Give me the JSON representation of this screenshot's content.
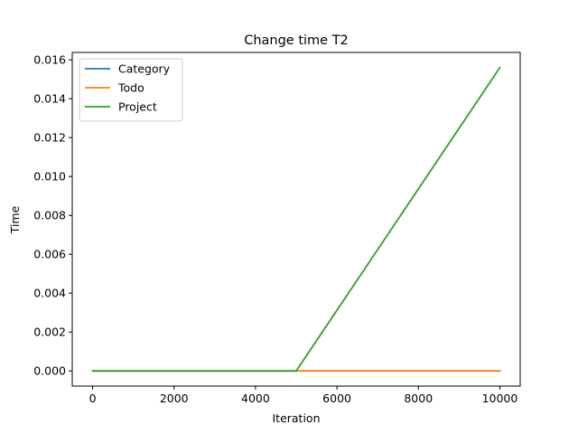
{
  "chart_data": {
    "type": "line",
    "title": "Change time T2",
    "xlabel": "Iteration",
    "ylabel": "Time",
    "xlim": [
      -500,
      10500
    ],
    "ylim": [
      -0.00078,
      0.01638
    ],
    "xticks": [
      0,
      2000,
      4000,
      6000,
      8000,
      10000
    ],
    "yticks": [
      0.0,
      0.002,
      0.004,
      0.006,
      0.008,
      0.01,
      0.012,
      0.014,
      0.016
    ],
    "xtick_labels": [
      "0",
      "2000",
      "4000",
      "6000",
      "8000",
      "10000"
    ],
    "ytick_labels": [
      "0.000",
      "0.002",
      "0.004",
      "0.006",
      "0.008",
      "0.010",
      "0.012",
      "0.014",
      "0.016"
    ],
    "grid": false,
    "legend_position": "top-left",
    "series": [
      {
        "name": "Category",
        "color": "#1f77b4",
        "x": [
          0,
          5000,
          10000
        ],
        "y": [
          0.0,
          0.0,
          0.0
        ]
      },
      {
        "name": "Todo",
        "color": "#ff7f0e",
        "x": [
          0,
          5000,
          10000
        ],
        "y": [
          0.0,
          0.0,
          0.0
        ]
      },
      {
        "name": "Project",
        "color": "#2ca02c",
        "x": [
          0,
          5000,
          10000
        ],
        "y": [
          0.0,
          0.0,
          0.0156
        ]
      }
    ]
  }
}
